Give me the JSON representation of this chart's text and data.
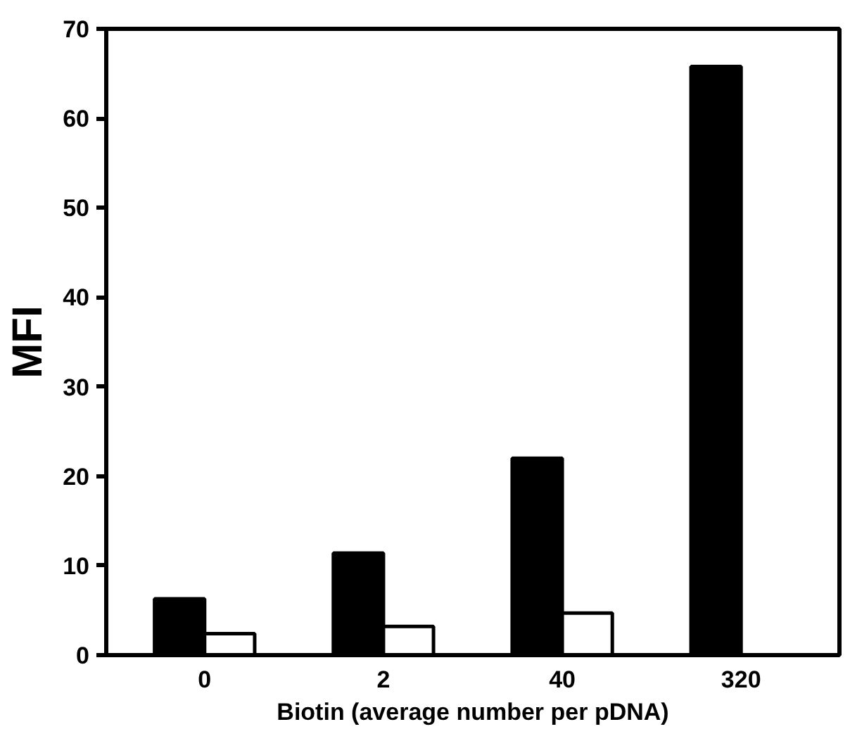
{
  "chart_data": {
    "type": "bar",
    "xlabel": "Biotin (average number per pDNA)",
    "ylabel": "MFI",
    "categories": [
      "0",
      "2",
      "40",
      "320"
    ],
    "series": [
      {
        "color": "#000000",
        "values": [
          6.3,
          11.4,
          22.0,
          65.8
        ]
      },
      {
        "color": "#ffffff",
        "values": [
          2.4,
          3.2,
          4.7,
          null
        ]
      }
    ],
    "ylim": [
      0,
      70
    ],
    "yticks": [
      0,
      10,
      20,
      30,
      40,
      50,
      60,
      70
    ],
    "grid": false
  }
}
